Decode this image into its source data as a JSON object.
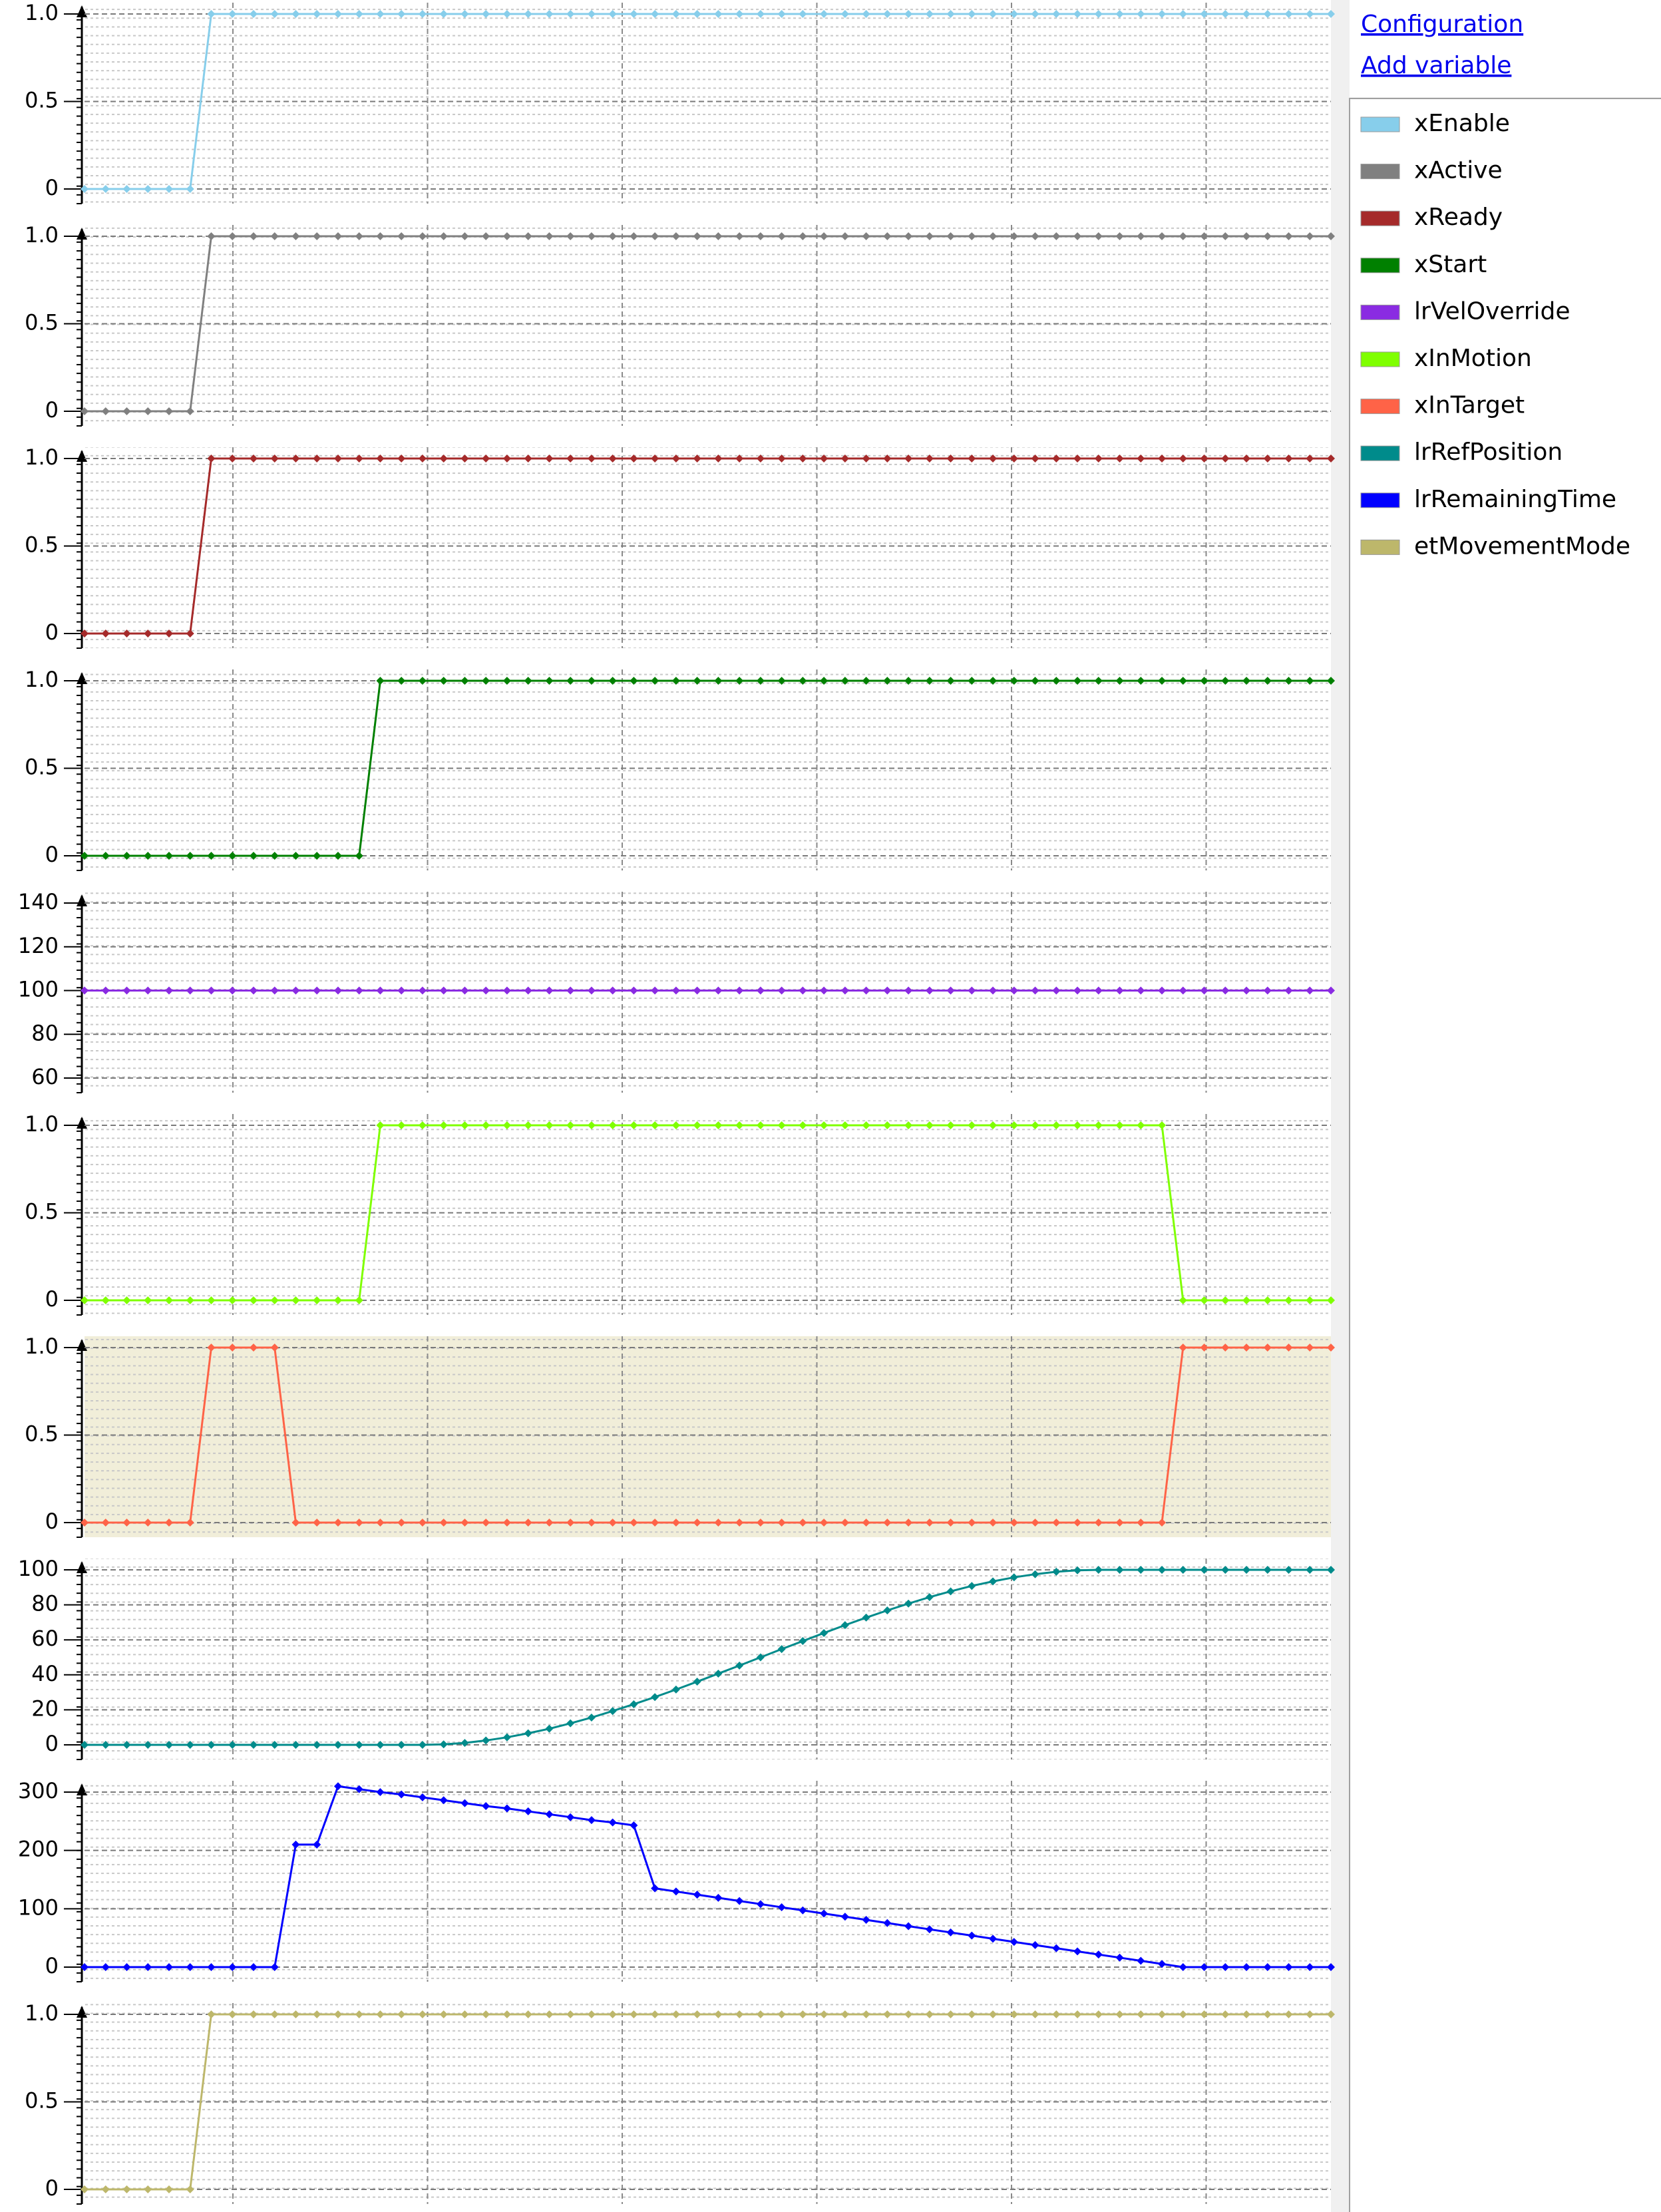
{
  "links": [
    "Configuration",
    "Add variable"
  ],
  "chart_data": [
    {
      "type": "line",
      "series": [
        {
          "name": "xEnable",
          "color": "#87ceeb",
          "values": [
            0,
            0,
            0,
            0,
            0,
            0,
            1,
            1,
            1,
            1,
            1,
            1,
            1,
            1,
            1,
            1,
            1,
            1,
            1,
            1,
            1,
            1,
            1,
            1,
            1,
            1,
            1,
            1,
            1,
            1,
            1,
            1,
            1,
            1,
            1,
            1,
            1,
            1,
            1,
            1,
            1,
            1,
            1,
            1,
            1,
            1,
            1,
            1,
            1,
            1,
            1,
            1,
            1,
            1,
            1,
            1,
            1,
            1,
            1,
            1
          ]
        }
      ],
      "ylim": [
        0,
        1
      ],
      "yticks": [
        0,
        0.5,
        {
          "value": 1,
          "label": "1.0"
        }
      ],
      "grid": true
    },
    {
      "type": "line",
      "series": [
        {
          "name": "xActive",
          "color": "#808080",
          "values": [
            0,
            0,
            0,
            0,
            0,
            0,
            1,
            1,
            1,
            1,
            1,
            1,
            1,
            1,
            1,
            1,
            1,
            1,
            1,
            1,
            1,
            1,
            1,
            1,
            1,
            1,
            1,
            1,
            1,
            1,
            1,
            1,
            1,
            1,
            1,
            1,
            1,
            1,
            1,
            1,
            1,
            1,
            1,
            1,
            1,
            1,
            1,
            1,
            1,
            1,
            1,
            1,
            1,
            1,
            1,
            1,
            1,
            1,
            1,
            1
          ]
        }
      ],
      "ylim": [
        0,
        1
      ],
      "yticks": [
        0,
        0.5,
        {
          "value": 1,
          "label": "1.0"
        }
      ],
      "grid": true
    },
    {
      "type": "line",
      "series": [
        {
          "name": "xReady",
          "color": "#a52a2a",
          "values": [
            0,
            0,
            0,
            0,
            0,
            0,
            1,
            1,
            1,
            1,
            1,
            1,
            1,
            1,
            1,
            1,
            1,
            1,
            1,
            1,
            1,
            1,
            1,
            1,
            1,
            1,
            1,
            1,
            1,
            1,
            1,
            1,
            1,
            1,
            1,
            1,
            1,
            1,
            1,
            1,
            1,
            1,
            1,
            1,
            1,
            1,
            1,
            1,
            1,
            1,
            1,
            1,
            1,
            1,
            1,
            1,
            1,
            1,
            1,
            1
          ]
        }
      ],
      "ylim": [
        0,
        1
      ],
      "yticks": [
        0,
        0.5,
        {
          "value": 1,
          "label": "1.0"
        }
      ],
      "grid": true
    },
    {
      "type": "line",
      "series": [
        {
          "name": "xStart",
          "color": "#008000",
          "values": [
            0,
            0,
            0,
            0,
            0,
            0,
            0,
            0,
            0,
            0,
            0,
            0,
            0,
            0,
            1,
            1,
            1,
            1,
            1,
            1,
            1,
            1,
            1,
            1,
            1,
            1,
            1,
            1,
            1,
            1,
            1,
            1,
            1,
            1,
            1,
            1,
            1,
            1,
            1,
            1,
            1,
            1,
            1,
            1,
            1,
            1,
            1,
            1,
            1,
            1,
            1,
            1,
            1,
            1,
            1,
            1,
            1,
            1,
            1,
            1
          ]
        }
      ],
      "ylim": [
        0,
        1
      ],
      "yticks": [
        0,
        0.5,
        {
          "value": 1,
          "label": "1.0"
        }
      ],
      "grid": true
    },
    {
      "type": "line",
      "series": [
        {
          "name": "lrVelOverride",
          "color": "#8a2be2",
          "values": [
            100,
            100,
            100,
            100,
            100,
            100,
            100,
            100,
            100,
            100,
            100,
            100,
            100,
            100,
            100,
            100,
            100,
            100,
            100,
            100,
            100,
            100,
            100,
            100,
            100,
            100,
            100,
            100,
            100,
            100,
            100,
            100,
            100,
            100,
            100,
            100,
            100,
            100,
            100,
            100,
            100,
            100,
            100,
            100,
            100,
            100,
            100,
            100,
            100,
            100,
            100,
            100,
            100,
            100,
            100,
            100,
            100,
            100,
            100,
            100
          ]
        }
      ],
      "ylim": [
        60,
        140
      ],
      "yticks": [
        60,
        80,
        100,
        120,
        140
      ],
      "grid": true
    },
    {
      "type": "line",
      "series": [
        {
          "name": "xInMotion",
          "color": "#7fff00",
          "values": [
            0,
            0,
            0,
            0,
            0,
            0,
            0,
            0,
            0,
            0,
            0,
            0,
            0,
            0,
            1,
            1,
            1,
            1,
            1,
            1,
            1,
            1,
            1,
            1,
            1,
            1,
            1,
            1,
            1,
            1,
            1,
            1,
            1,
            1,
            1,
            1,
            1,
            1,
            1,
            1,
            1,
            1,
            1,
            1,
            1,
            1,
            1,
            1,
            1,
            1,
            1,
            1,
            0,
            0,
            0,
            0,
            0,
            0,
            0,
            0
          ]
        }
      ],
      "ylim": [
        0,
        1
      ],
      "yticks": [
        0,
        0.5,
        {
          "value": 1,
          "label": "1.0"
        }
      ],
      "grid": true
    },
    {
      "type": "line",
      "series": [
        {
          "name": "xInTarget",
          "color": "#ff6347",
          "values": [
            0,
            0,
            0,
            0,
            0,
            0,
            1,
            1,
            1,
            1,
            0,
            0,
            0,
            0,
            0,
            0,
            0,
            0,
            0,
            0,
            0,
            0,
            0,
            0,
            0,
            0,
            0,
            0,
            0,
            0,
            0,
            0,
            0,
            0,
            0,
            0,
            0,
            0,
            0,
            0,
            0,
            0,
            0,
            0,
            0,
            0,
            0,
            0,
            0,
            0,
            0,
            0,
            1,
            1,
            1,
            1,
            1,
            1,
            1,
            1
          ]
        }
      ],
      "ylim": [
        0,
        1
      ],
      "yticks": [
        0,
        0.5,
        {
          "value": 1,
          "label": "1.0"
        }
      ],
      "grid": true,
      "background": "#f1eed9"
    },
    {
      "type": "line",
      "series": [
        {
          "name": "lrRefPosition",
          "color": "#008b8b",
          "values": [
            0,
            0,
            0,
            0,
            0,
            0,
            0,
            0,
            0,
            0,
            0,
            0,
            0,
            0,
            0,
            0,
            0,
            0.3,
            1.1,
            2.5,
            4.3,
            6.6,
            9.2,
            12.3,
            15.6,
            19.3,
            23.2,
            27.3,
            31.6,
            36.1,
            40.7,
            45.3,
            50,
            54.7,
            59.3,
            63.9,
            68.4,
            72.7,
            76.8,
            80.7,
            84.4,
            87.7,
            90.8,
            93.4,
            95.7,
            97.5,
            98.9,
            99.7,
            100,
            100,
            100,
            100,
            100,
            100,
            100,
            100,
            100,
            100,
            100,
            100
          ]
        }
      ],
      "ylim": [
        0,
        100
      ],
      "yticks": [
        0,
        20,
        40,
        60,
        80,
        100
      ],
      "grid": true
    },
    {
      "type": "line",
      "series": [
        {
          "name": "lrRemainingTime",
          "color": "#0000ff",
          "values": [
            0,
            0,
            0,
            0,
            0,
            0,
            0,
            0,
            0,
            0,
            210,
            210,
            310,
            305,
            300,
            296,
            291,
            286,
            281,
            276,
            272,
            267,
            262,
            257,
            252,
            248,
            243,
            135,
            129.6,
            124.2,
            118.8,
            113.4,
            108,
            102.6,
            97.2,
            91.8,
            86.4,
            81,
            75.6,
            70.2,
            64.8,
            59.4,
            54,
            48.6,
            43.2,
            37.8,
            32.4,
            27,
            21.6,
            16.2,
            10.8,
            5.4,
            0,
            0,
            0,
            0,
            0,
            0,
            0,
            0
          ]
        }
      ],
      "ylim": [
        0,
        300
      ],
      "yticks": [
        0,
        100,
        200,
        300
      ],
      "grid": true
    },
    {
      "type": "line",
      "series": [
        {
          "name": "etMovementMode",
          "color": "#bdb76b",
          "values": [
            0,
            0,
            0,
            0,
            0,
            0,
            1,
            1,
            1,
            1,
            1,
            1,
            1,
            1,
            1,
            1,
            1,
            1,
            1,
            1,
            1,
            1,
            1,
            1,
            1,
            1,
            1,
            1,
            1,
            1,
            1,
            1,
            1,
            1,
            1,
            1,
            1,
            1,
            1,
            1,
            1,
            1,
            1,
            1,
            1,
            1,
            1,
            1,
            1,
            1,
            1,
            1,
            1,
            1,
            1,
            1,
            1,
            1,
            1,
            1
          ]
        }
      ],
      "ylim": [
        0,
        1
      ],
      "yticks": [
        0,
        0.5,
        {
          "value": 1,
          "label": "1.0"
        }
      ],
      "grid": true
    }
  ]
}
